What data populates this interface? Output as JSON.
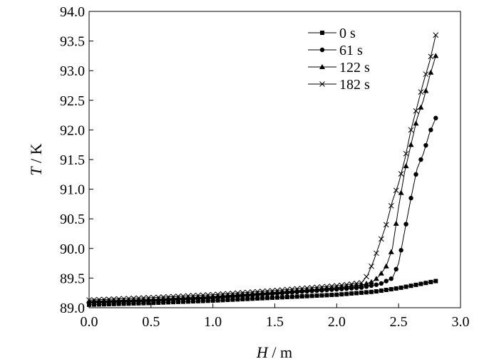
{
  "chart_data": {
    "type": "line",
    "xlabel": {
      "var": "H",
      "unit": "m"
    },
    "ylabel": {
      "var": "T",
      "unit": "K"
    },
    "xlim": [
      0.0,
      3.0
    ],
    "ylim": [
      89.0,
      94.0
    ],
    "x_ticks": [
      "0.0",
      "0.5",
      "1.0",
      "1.5",
      "2.0",
      "2.5",
      "3.0"
    ],
    "y_ticks": [
      "89.0",
      "89.5",
      "90.0",
      "90.5",
      "91.0",
      "91.5",
      "92.0",
      "92.5",
      "93.0",
      "93.5",
      "94.0"
    ],
    "legend_position": "top-right",
    "series": [
      {
        "name": "0 s",
        "marker": "square",
        "x": [
          0.0,
          0.5,
          1.0,
          1.5,
          2.0,
          2.3,
          2.5,
          2.7,
          2.8
        ],
        "y": [
          89.05,
          89.08,
          89.12,
          89.17,
          89.22,
          89.27,
          89.33,
          89.41,
          89.45
        ]
      },
      {
        "name": "61 s",
        "marker": "circle",
        "x": [
          0.0,
          0.5,
          1.0,
          1.5,
          2.0,
          2.2,
          2.35,
          2.45,
          2.5,
          2.55,
          2.6,
          2.65,
          2.7,
          2.75,
          2.8
        ],
        "y": [
          89.09,
          89.12,
          89.17,
          89.24,
          89.31,
          89.34,
          89.4,
          89.5,
          89.75,
          90.3,
          90.85,
          91.35,
          91.6,
          91.95,
          92.2
        ]
      },
      {
        "name": "122 s",
        "marker": "triangle",
        "x": [
          0.0,
          0.5,
          1.0,
          1.5,
          2.0,
          2.2,
          2.3,
          2.35,
          2.4,
          2.45,
          2.5,
          2.55,
          2.6,
          2.65,
          2.7,
          2.75,
          2.8
        ],
        "y": [
          89.11,
          89.14,
          89.19,
          89.26,
          89.34,
          89.38,
          89.45,
          89.55,
          89.7,
          90.0,
          90.7,
          91.3,
          91.75,
          92.2,
          92.5,
          92.9,
          93.25
        ]
      },
      {
        "name": "182 s",
        "marker": "cross",
        "x": [
          0.0,
          0.5,
          1.0,
          1.5,
          2.0,
          2.2,
          2.25,
          2.3,
          2.35,
          2.4,
          2.45,
          2.5,
          2.55,
          2.6,
          2.65,
          2.7,
          2.75,
          2.8
        ],
        "y": [
          89.13,
          89.17,
          89.22,
          89.29,
          89.37,
          89.42,
          89.55,
          89.8,
          90.1,
          90.4,
          90.8,
          91.1,
          91.5,
          92.0,
          92.4,
          92.8,
          93.15,
          93.6
        ]
      }
    ]
  }
}
